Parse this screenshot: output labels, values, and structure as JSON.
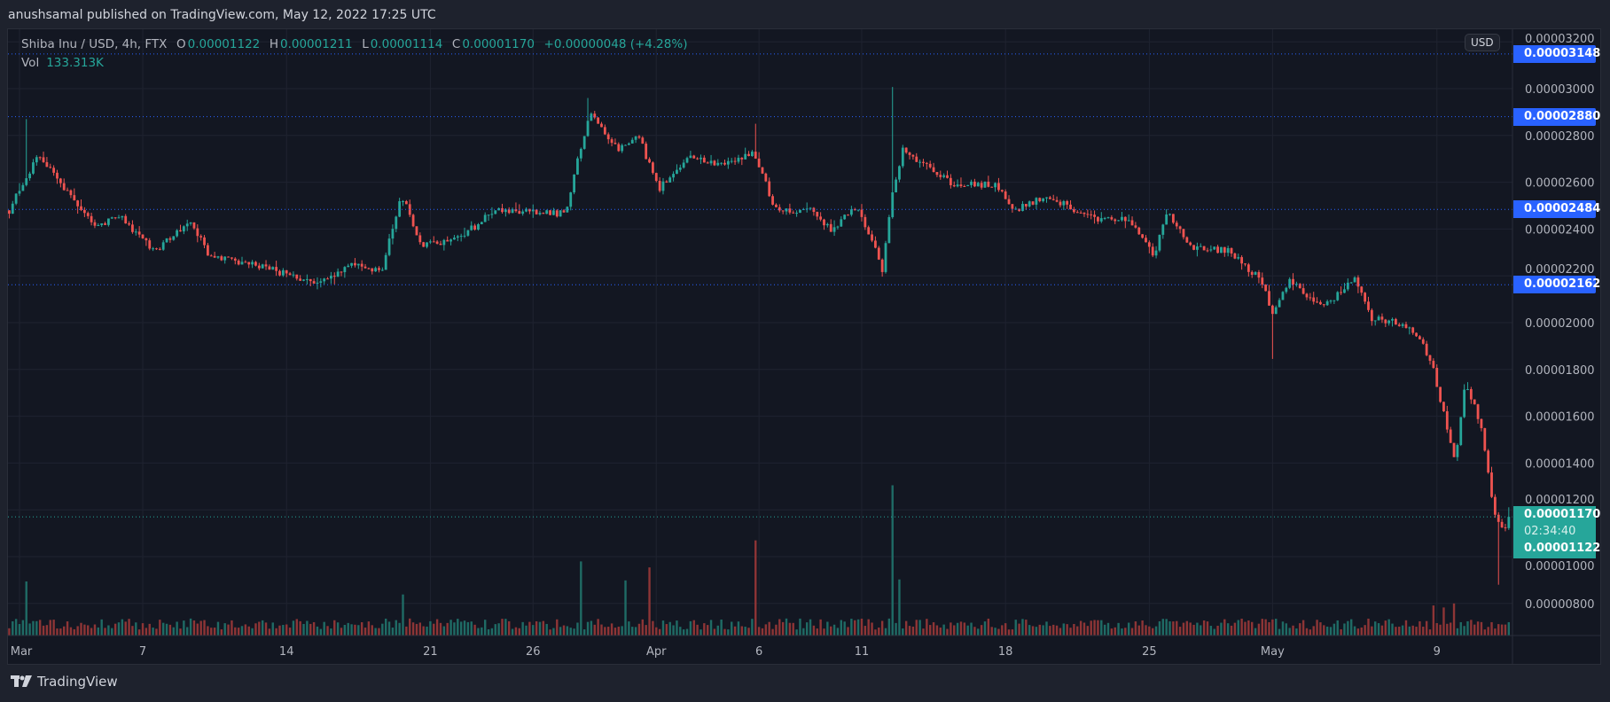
{
  "publisher_line": "anushsamal published on TradingView.com, May 12, 2022 17:25 UTC",
  "legend": {
    "symbol": "Shiba Inu / USD, 4h, FTX",
    "o_label": "O",
    "open": "0.00001122",
    "h_label": "H",
    "high": "0.00001211",
    "l_label": "L",
    "low": "0.00001114",
    "c_label": "C",
    "close": "0.00001170",
    "change": "+0.00000048 (+4.28%)",
    "vol_label": "Vol",
    "vol_value": "133.313K"
  },
  "currency_button": "USD",
  "price_lines": [
    {
      "label": "0.00003148",
      "value": 3.148e-05
    },
    {
      "label": "0.00002880",
      "value": 2.88e-05
    },
    {
      "label": "0.00002484",
      "value": 2.484e-05
    },
    {
      "label": "0.00002162",
      "value": 2.162e-05
    }
  ],
  "current_price": {
    "price": "0.00001170",
    "countdown": "02:34:40",
    "open": "0.00001122",
    "value": 1.17e-05
  },
  "brand": "TradingView",
  "colors": {
    "up": "#26a69a",
    "down": "#ef5350",
    "up_vol": "#1f6b65",
    "down_vol": "#8e3536",
    "line": "#2962ff",
    "background": "#131722"
  },
  "chart_data": {
    "type": "candlestick",
    "title": "Shiba Inu / USD, 4h, FTX",
    "interval_hours": 4,
    "x_unit": "days since Mar 1 2022",
    "ylim": [
      6.8e-06,
      3.3e-05
    ],
    "y_ticks": [
      "0.00003200",
      "0.00003000",
      "0.00002800",
      "0.00002600",
      "0.00002400",
      "0.00002200",
      "0.00002000",
      "0.00001800",
      "0.00001600",
      "0.00001400",
      "0.00001200",
      "0.00001000",
      "0.00000800"
    ],
    "y_tick_values": [
      3.2e-05,
      3e-05,
      2.8e-05,
      2.6e-05,
      2.4e-05,
      2.2e-05,
      2e-05,
      1.8e-05,
      1.6e-05,
      1.4e-05,
      1.2e-05,
      1e-05,
      8e-06
    ],
    "x_ticks": [
      {
        "label": "Mar",
        "day": 0
      },
      {
        "label": "7",
        "day": 6
      },
      {
        "label": "14",
        "day": 13
      },
      {
        "label": "21",
        "day": 20
      },
      {
        "label": "26",
        "day": 25
      },
      {
        "label": "Apr",
        "day": 31
      },
      {
        "label": "6",
        "day": 36
      },
      {
        "label": "11",
        "day": 41
      },
      {
        "label": "18",
        "day": 48
      },
      {
        "label": "25",
        "day": 55
      },
      {
        "label": "May",
        "day": 61
      },
      {
        "label": "9",
        "day": 69
      }
    ],
    "close_path": [
      [
        -0.5,
        2.48e-05
      ],
      [
        0.9,
        2.72e-05
      ],
      [
        2.6,
        2.523e-05
      ],
      [
        3.8,
        2.413e-05
      ],
      [
        4.8,
        2.458e-05
      ],
      [
        6.6,
        2.303e-05
      ],
      [
        8.3,
        2.436e-05
      ],
      [
        9.3,
        2.28e-05
      ],
      [
        12.1,
        2.231e-05
      ],
      [
        14.5,
        2.16e-05
      ],
      [
        16.1,
        2.246e-05
      ],
      [
        17.6,
        2.216e-05
      ],
      [
        18.6,
        2.545e-05
      ],
      [
        19.6,
        2.326e-05
      ],
      [
        21.6,
        2.371e-05
      ],
      [
        23.1,
        2.481e-05
      ],
      [
        26.6,
        2.466e-05
      ],
      [
        27.0,
        2.633e-05
      ],
      [
        27.8,
        2.897e-05
      ],
      [
        29.1,
        2.742e-05
      ],
      [
        30.1,
        2.807e-05
      ],
      [
        31.1,
        2.568e-05
      ],
      [
        32.6,
        2.7e-05
      ],
      [
        34.1,
        2.678e-05
      ],
      [
        35.8,
        2.72e-05
      ],
      [
        36.8,
        2.481e-05
      ],
      [
        38.6,
        2.481e-05
      ],
      [
        39.5,
        2.39e-05
      ],
      [
        40.8,
        2.5e-05
      ],
      [
        42.0,
        2.231e-05
      ],
      [
        42.5,
        2.545e-05
      ],
      [
        43.0,
        2.742e-05
      ],
      [
        44.3,
        2.655e-05
      ],
      [
        45.5,
        2.59e-05
      ],
      [
        47.5,
        2.59e-05
      ],
      [
        48.5,
        2.481e-05
      ],
      [
        50.0,
        2.545e-05
      ],
      [
        52.0,
        2.451e-05
      ],
      [
        54.0,
        2.436e-05
      ],
      [
        55.3,
        2.28e-05
      ],
      [
        55.8,
        2.481e-05
      ],
      [
        57.0,
        2.326e-05
      ],
      [
        59.0,
        2.303e-05
      ],
      [
        60.5,
        2.174e-05
      ],
      [
        61.0,
        2.042e-05
      ],
      [
        61.8,
        2.174e-05
      ],
      [
        63.5,
        2.072e-05
      ],
      [
        65.0,
        2.186e-05
      ],
      [
        65.8,
        2.019e-05
      ],
      [
        67.7,
        1.985e-05
      ],
      [
        68.7,
        1.845e-05
      ],
      [
        69.9,
        1.405e-05
      ],
      [
        70.4,
        1.758e-05
      ],
      [
        71.2,
        1.538e-05
      ],
      [
        71.8,
        1.185e-05
      ],
      [
        72.3,
        1.122e-05
      ],
      [
        72.5,
        1.17e-05
      ]
    ],
    "wick_extremes": [
      {
        "day": 0.4,
        "high": 2.87e-05
      },
      {
        "day": 27.6,
        "high": 2.96e-05
      },
      {
        "day": 35.8,
        "high": 2.85e-05
      },
      {
        "day": 42.5,
        "high": 3.007e-05
      },
      {
        "day": 61.0,
        "low": 1.845e-05
      },
      {
        "day": 72.0,
        "low": 8.8e-06
      }
    ],
    "volume_spikes_k": [
      [
        0.4,
        540
      ],
      [
        18.6,
        410
      ],
      [
        27.4,
        740
      ],
      [
        29.5,
        550
      ],
      [
        30.7,
        680
      ],
      [
        35.8,
        950
      ],
      [
        42.5,
        1500
      ],
      [
        42.8,
        560
      ],
      [
        68.8,
        300
      ],
      [
        69.3,
        280
      ],
      [
        69.8,
        320
      ],
      [
        72.5,
        133
      ]
    ],
    "last_candle": {
      "open": 1.122e-05,
      "high": 1.211e-05,
      "low": 1.114e-05,
      "close": 1.17e-05
    }
  }
}
